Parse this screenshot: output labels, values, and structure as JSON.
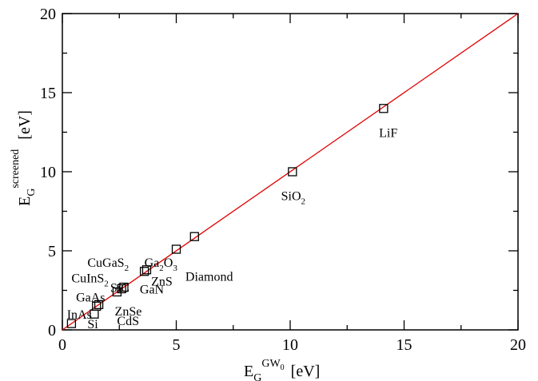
{
  "chart_data": {
    "type": "scatter",
    "title": "",
    "xlabel": {
      "main": "E",
      "sub": "G",
      "sup": "GW",
      "sup_sub": "0",
      "unit": "[eV]"
    },
    "ylabel": {
      "main": "E",
      "sub": "G",
      "sup": "screened",
      "unit": "[eV]"
    },
    "xlim": [
      0,
      20
    ],
    "ylim": [
      0,
      20
    ],
    "xticks": [
      0,
      5,
      10,
      15,
      20
    ],
    "yticks": [
      0,
      5,
      10,
      15,
      20
    ],
    "xtick_labels": [
      "0",
      "5",
      "10",
      "15",
      "20"
    ],
    "ytick_labels": [
      "0",
      "5",
      "10",
      "15",
      "20"
    ],
    "grid": false,
    "legend": "none",
    "reference_line": {
      "from": [
        0,
        0
      ],
      "to": [
        20,
        20
      ],
      "color": "#e00000"
    },
    "marker": {
      "shape": "open-square",
      "color": "#000000"
    },
    "points": [
      {
        "x": 0.4,
        "y": 0.4
      },
      {
        "x": 1.4,
        "y": 1.0
      },
      {
        "x": 1.5,
        "y": 1.5
      },
      {
        "x": 1.6,
        "y": 1.6
      },
      {
        "x": 2.4,
        "y": 2.4
      },
      {
        "x": 2.6,
        "y": 2.6
      },
      {
        "x": 2.7,
        "y": 2.7
      },
      {
        "x": 3.6,
        "y": 3.7
      },
      {
        "x": 3.7,
        "y": 3.8
      },
      {
        "x": 5.0,
        "y": 5.1
      },
      {
        "x": 5.8,
        "y": 5.9
      },
      {
        "x": 10.1,
        "y": 10.0
      },
      {
        "x": 14.1,
        "y": 14.0
      }
    ],
    "annotations": [
      {
        "text": "InAs",
        "x": 0.2,
        "y": 0.7
      },
      {
        "text": "Si",
        "x": 1.1,
        "y": 0.1
      },
      {
        "text": "CdS",
        "x": 2.4,
        "y": 0.3
      },
      {
        "text": "ZnSe",
        "x": 2.3,
        "y": 0.9
      },
      {
        "text": "GaAs",
        "x": 0.6,
        "y": 1.8
      },
      {
        "text": "SiC",
        "x": 2.1,
        "y": 2.4
      },
      {
        "text": "GaN",
        "x": 3.4,
        "y": 2.3
      },
      {
        "text": "ZnS",
        "x": 3.9,
        "y": 2.8
      },
      {
        "text": "CuInS",
        "sub": "2",
        "x": 0.4,
        "y": 3.0
      },
      {
        "text": "CuGaS",
        "sub": "2",
        "x": 1.1,
        "y": 4.0
      },
      {
        "text": "Ga",
        "sub": "2",
        "text2": "O",
        "sub2": "3",
        "x": 3.6,
        "y": 4.0
      },
      {
        "text": "Diamond",
        "x": 5.4,
        "y": 3.1
      },
      {
        "text": "SiO",
        "sub": "2",
        "x": 9.6,
        "y": 8.2
      },
      {
        "text": "LiF",
        "x": 13.9,
        "y": 12.2
      }
    ]
  }
}
